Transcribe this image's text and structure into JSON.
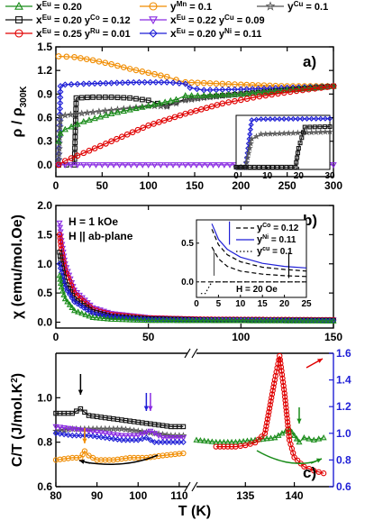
{
  "legend": {
    "items": [
      {
        "label": "x",
        "sup": "Eu",
        "tail": " = 0.20",
        "color": "#1a8c1a",
        "marker": "triangle"
      },
      {
        "label": "y",
        "sup": "Mn",
        "tail": " = 0.1",
        "color": "#f08c00",
        "marker": "circle"
      },
      {
        "label": "y",
        "sup": "Cu",
        "tail": " = 0.1",
        "color": "#555555",
        "marker": "star"
      },
      {
        "label": "x",
        "sup": "Eu",
        "tail": " = 0.20  y",
        "sup2": "Co",
        "tail2": " = 0.12",
        "color": "#111111",
        "marker": "square"
      },
      {
        "label": "x",
        "sup": "Eu",
        "tail": " = 0.22 y",
        "sup2": "Cu",
        "tail2": " = 0.09",
        "color": "#8a2be2",
        "marker": "tridown"
      },
      {
        "label": "x",
        "sup": "Eu",
        "tail": " = 0.25 y",
        "sup2": "Ru",
        "tail2": " = 0.01",
        "color": "#e00000",
        "marker": "circle"
      },
      {
        "label": "x",
        "sup": "Eu",
        "tail": " = 0.20 y",
        "sup2": "Ni",
        "tail2": " = 0.11",
        "color": "#1f1fd6",
        "marker": "diamond"
      }
    ]
  },
  "chart_data": [
    {
      "type": "line",
      "panel": "a)",
      "xlim": [
        0,
        300
      ],
      "ylim": [
        -0.15,
        1.5
      ],
      "xticks": [
        0,
        50,
        100,
        150,
        200,
        250,
        300
      ],
      "yticks": [
        0.0,
        0.3,
        0.6,
        0.9,
        1.2,
        1.5
      ],
      "ylabel": "ρ / ρ",
      "ylabel_sub": "300K",
      "series": [
        {
          "key": "mn",
          "color": "#f08c00",
          "x": [
            3,
            20,
            40,
            60,
            80,
            100,
            120,
            130,
            140,
            160,
            200,
            250,
            300
          ],
          "y": [
            1.38,
            1.37,
            1.33,
            1.28,
            1.22,
            1.17,
            1.12,
            1.08,
            1.05,
            1.04,
            1.02,
            1.0,
            1.0
          ]
        },
        {
          "key": "ni",
          "color": "#1f1fd6",
          "x": [
            3,
            4,
            5,
            10,
            30,
            60,
            90,
            120,
            140,
            145,
            160,
            200,
            250,
            300
          ],
          "y": [
            0.0,
            0.5,
            1.0,
            1.02,
            1.03,
            1.04,
            1.05,
            1.05,
            1.03,
            0.98,
            0.95,
            0.96,
            0.98,
            1.0
          ]
        },
        {
          "key": "co",
          "color": "#111111",
          "x": [
            3,
            20,
            22,
            40,
            60,
            80,
            100,
            110,
            120,
            130,
            140,
            160,
            200,
            250,
            300
          ],
          "y": [
            0.0,
            0.0,
            0.85,
            0.86,
            0.86,
            0.85,
            0.82,
            0.78,
            0.75,
            0.8,
            0.83,
            0.86,
            0.9,
            0.95,
            1.0
          ]
        },
        {
          "key": "cu",
          "color": "#555555",
          "x": [
            3,
            5,
            10,
            40,
            80,
            100,
            120,
            130,
            140,
            160,
            200,
            250,
            300
          ],
          "y": [
            0.0,
            0.62,
            0.63,
            0.67,
            0.72,
            0.75,
            0.74,
            0.78,
            0.82,
            0.85,
            0.9,
            0.95,
            1.0
          ]
        },
        {
          "key": "eu",
          "color": "#1a8c1a",
          "x": [
            3,
            5,
            10,
            30,
            60,
            100,
            130,
            140,
            160,
            200,
            250,
            300
          ],
          "y": [
            0.3,
            0.4,
            0.45,
            0.55,
            0.65,
            0.75,
            0.83,
            0.88,
            0.88,
            0.9,
            0.95,
            1.0
          ]
        },
        {
          "key": "cu22",
          "color": "#8a2be2",
          "x": [
            3,
            10,
            50,
            100,
            140,
            200,
            250,
            300
          ],
          "y": [
            0.0,
            0.0,
            0.0,
            0.0,
            0.0,
            0.0,
            0.0,
            0.0
          ]
        },
        {
          "key": "ru",
          "color": "#e00000",
          "x": [
            3,
            10,
            30,
            60,
            100,
            140,
            180,
            220,
            260,
            300
          ],
          "y": [
            0.0,
            0.05,
            0.15,
            0.3,
            0.5,
            0.65,
            0.78,
            0.87,
            0.94,
            1.0
          ]
        }
      ],
      "inset": {
        "xlim": [
          0,
          30
        ],
        "ylim": [
          -0.05,
          1.1
        ],
        "xticks": [
          0,
          10,
          20,
          30
        ],
        "series": [
          {
            "color": "#1f1fd6",
            "x": [
              0,
              3,
              4,
              5,
              8,
              30
            ],
            "y": [
              0,
              0,
              0.5,
              1.0,
              1.02,
              1.03
            ]
          },
          {
            "color": "#555555",
            "x": [
              0,
              3,
              5,
              8,
              30
            ],
            "y": [
              0,
              0,
              0.6,
              0.7,
              0.75
            ]
          },
          {
            "color": "#111111",
            "x": [
              0,
              19,
              20,
              22,
              30
            ],
            "y": [
              0,
              0,
              0.4,
              0.85,
              0.86
            ]
          }
        ]
      }
    },
    {
      "type": "line",
      "panel": "b)",
      "xlim": [
        0,
        150
      ],
      "ylim": [
        -0.1,
        2.0
      ],
      "xticks": [
        0,
        50,
        100,
        150
      ],
      "yticks": [
        0.0,
        0.5,
        1.0,
        1.5,
        2.0
      ],
      "ylabel": "χ (emu/mol.Oe)",
      "annotations": [
        "H = 1 kOe",
        "H || ab-plane"
      ],
      "series": [
        {
          "key": "cu22",
          "color": "#8a2be2",
          "x": [
            2,
            3,
            5,
            10,
            20,
            30,
            50,
            80,
            150
          ],
          "y": [
            1.7,
            1.4,
            1.0,
            0.55,
            0.25,
            0.15,
            0.08,
            0.05,
            0.04
          ]
        },
        {
          "key": "ru",
          "color": "#e00000",
          "x": [
            2,
            3,
            5,
            10,
            20,
            30,
            50,
            80,
            150
          ],
          "y": [
            1.5,
            1.25,
            0.9,
            0.5,
            0.22,
            0.13,
            0.07,
            0.05,
            0.04
          ]
        },
        {
          "key": "co",
          "color": "#111111",
          "x": [
            2,
            3,
            5,
            10,
            20,
            30,
            50,
            80,
            150
          ],
          "y": [
            1.2,
            1.0,
            0.7,
            0.4,
            0.18,
            0.1,
            0.06,
            0.04,
            0.03
          ]
        },
        {
          "key": "ni",
          "color": "#1f1fd6",
          "x": [
            2,
            3,
            5,
            10,
            20,
            30,
            50,
            80,
            150
          ],
          "y": [
            1.0,
            0.85,
            0.6,
            0.35,
            0.15,
            0.09,
            0.05,
            0.04,
            0.03
          ]
        },
        {
          "key": "eu",
          "color": "#1a8c1a",
          "x": [
            2,
            3,
            5,
            10,
            20,
            30,
            50,
            150
          ],
          "y": [
            0.8,
            0.6,
            0.4,
            0.2,
            0.08,
            0.05,
            0.03,
            0.02
          ]
        }
      ],
      "inset": {
        "xlim": [
          0,
          25
        ],
        "ylim": [
          -0.2,
          0.8
        ],
        "xticks": [
          0,
          5,
          10,
          15,
          20,
          25
        ],
        "yticks": [
          0.0,
          0.5
        ],
        "annotation": "H = 20 Oe",
        "legend": [
          {
            "label": "y",
            "sup": "Co",
            "tail": " = 0.12",
            "dash": "5,3",
            "color": "#000"
          },
          {
            "label": "y",
            "sup": "Ni",
            "tail": " = 0.11",
            "dash": "",
            "color": "#1f1fd6"
          },
          {
            "label": "y",
            "sup": "cu",
            "tail": " = 0.1",
            "dash": "1.5,2.5",
            "color": "#000"
          }
        ],
        "series": [
          {
            "color": "#1f1fd6",
            "dash": "",
            "x": [
              3.5,
              5,
              7,
              10,
              15,
              20,
              25
            ],
            "y": [
              0.75,
              0.55,
              0.42,
              0.32,
              0.24,
              0.2,
              0.18
            ]
          },
          {
            "color": "#000000",
            "dash": "5,3",
            "x": [
              3.5,
              5,
              7,
              10,
              15,
              20,
              25
            ],
            "y": [
              0.68,
              0.48,
              0.35,
              0.26,
              0.19,
              0.16,
              0.14
            ]
          },
          {
            "color": "#000000",
            "dash": "5,3",
            "x": [
              3.5,
              5,
              7,
              10,
              15,
              20,
              25
            ],
            "y": [
              0.45,
              0.3,
              0.2,
              0.14,
              0.1,
              0.08,
              0.07
            ]
          },
          {
            "color": "#000000",
            "dash": "1.5,2.5",
            "x": [
              1,
              2,
              3,
              3.5,
              4,
              6,
              25
            ],
            "y": [
              -0.15,
              -0.15,
              -0.05,
              0.0,
              0.0,
              0.0,
              0.0
            ]
          },
          {
            "color": "#000000",
            "dash": "5,3",
            "x": [
              1,
              20,
              21,
              25
            ],
            "y": [
              0.0,
              0.0,
              0.0,
              0.0
            ]
          }
        ]
      }
    },
    {
      "type": "line",
      "panel": "c)",
      "xlabel": "T (K)",
      "ylabel": "C/T (J/mol.K",
      "ylabel_sup": "2",
      "ylabel_tail": ")",
      "ylim_left": [
        0.6,
        1.2
      ],
      "yticks_left": [
        0.6,
        0.8,
        1.0
      ],
      "ylim_right": [
        0.6,
        1.6
      ],
      "yticks_right": [
        0.6,
        0.8,
        1.0,
        1.2,
        1.4,
        1.6
      ],
      "xlim_left": [
        80,
        112
      ],
      "xticks_left": [
        80,
        90,
        100,
        110
      ],
      "xlim_right": [
        130,
        144
      ],
      "xticks_right": [
        135,
        140
      ],
      "series": [
        {
          "key": "co",
          "color": "#111111",
          "segment": "left",
          "x": [
            80,
            84,
            86,
            88,
            92,
            96,
            100,
            104,
            108,
            111
          ],
          "y": [
            0.93,
            0.93,
            0.95,
            0.92,
            0.91,
            0.9,
            0.89,
            0.88,
            0.87,
            0.87
          ]
        },
        {
          "key": "cu",
          "color": "#555555",
          "segment": "left",
          "x": [
            80,
            84,
            88,
            92,
            96,
            100,
            104,
            108,
            111
          ],
          "y": [
            0.85,
            0.86,
            0.86,
            0.86,
            0.86,
            0.85,
            0.84,
            0.83,
            0.83
          ]
        },
        {
          "key": "cu22",
          "color": "#8a2be2",
          "segment": "left",
          "x": [
            80,
            84,
            88,
            92,
            96,
            100,
            103,
            106,
            111
          ],
          "y": [
            0.87,
            0.86,
            0.85,
            0.84,
            0.83,
            0.83,
            0.85,
            0.82,
            0.82
          ]
        },
        {
          "key": "ni",
          "color": "#1f1fd6",
          "segment": "left",
          "x": [
            80,
            84,
            88,
            92,
            96,
            100,
            102,
            104,
            108,
            111
          ],
          "y": [
            0.84,
            0.83,
            0.83,
            0.82,
            0.81,
            0.81,
            0.82,
            0.8,
            0.8,
            0.8
          ]
        },
        {
          "key": "mn",
          "color": "#f08c00",
          "segment": "left",
          "x": [
            80,
            84,
            86,
            87,
            88,
            90,
            94,
            98,
            102,
            106,
            111
          ],
          "y": [
            0.72,
            0.73,
            0.73,
            0.76,
            0.74,
            0.72,
            0.72,
            0.73,
            0.73,
            0.74,
            0.75
          ]
        },
        {
          "key": "eu",
          "color": "#1a8c1a",
          "segment": "right",
          "axis": "left",
          "x": [
            130,
            132,
            134,
            136,
            138,
            139.5,
            140,
            140.5,
            141,
            142,
            143
          ],
          "y": [
            0.81,
            0.8,
            0.8,
            0.81,
            0.82,
            0.86,
            0.83,
            0.8,
            0.82,
            0.81,
            0.82
          ]
        },
        {
          "key": "ru",
          "color": "#e00000",
          "segment": "right",
          "axis": "right",
          "x": [
            132,
            134,
            135,
            136,
            137,
            138,
            138.5,
            139,
            139.5,
            140,
            141,
            142,
            143
          ],
          "y": [
            0.9,
            0.9,
            0.91,
            0.93,
            1.0,
            1.4,
            1.58,
            1.3,
            0.95,
            0.82,
            0.75,
            0.72,
            0.7
          ]
        }
      ]
    }
  ]
}
